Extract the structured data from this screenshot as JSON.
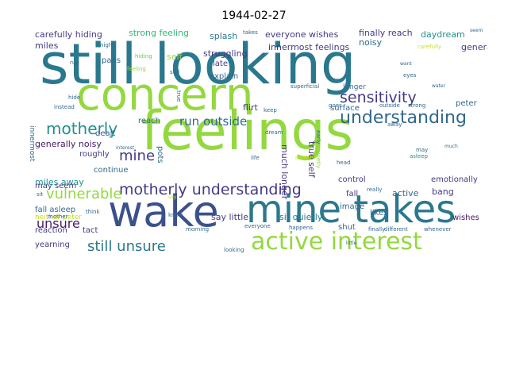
{
  "title": "1944-02-27",
  "colors": {
    "green": "#94d840",
    "teal": "#2a788e",
    "navy": "#3b518b",
    "indigo": "#443a83",
    "blue": "#31688e",
    "sea": "#21918c",
    "mint": "#35b779",
    "lime": "#5ec962",
    "yellow": "#c7e020",
    "purple": "#48186a"
  },
  "words": [
    {
      "text": "still looking",
      "color": "teal"
    },
    {
      "text": "concern",
      "color": "green"
    },
    {
      "text": "feelings",
      "color": "green"
    },
    {
      "text": "wake",
      "color": "navy"
    },
    {
      "text": "mine takes",
      "color": "teal"
    },
    {
      "text": "active interest",
      "color": "green"
    },
    {
      "text": "sensitivity",
      "color": "indigo"
    },
    {
      "text": "understanding",
      "color": "blue"
    },
    {
      "text": "motherly understanding",
      "color": "indigo"
    },
    {
      "text": "motherly",
      "color": "sea"
    },
    {
      "text": "mine",
      "color": "indigo"
    },
    {
      "text": "vulnerable",
      "color": "green"
    },
    {
      "text": "unsure",
      "color": "purple"
    },
    {
      "text": "still unsure",
      "color": "teal"
    },
    {
      "text": "run outside",
      "color": "blue"
    },
    {
      "text": "carefully hiding",
      "color": "indigo"
    },
    {
      "text": "strong feeling",
      "color": "mint"
    },
    {
      "text": "splash",
      "color": "teal"
    },
    {
      "text": "everyone wishes",
      "color": "indigo"
    },
    {
      "text": "finally reach",
      "color": "indigo"
    },
    {
      "text": "daydream",
      "color": "sea"
    },
    {
      "text": "miles",
      "color": "indigo"
    },
    {
      "text": "night",
      "color": "blue"
    },
    {
      "text": "takes",
      "color": "blue"
    },
    {
      "text": "seem",
      "color": "blue"
    },
    {
      "text": "innermost feelings",
      "color": "indigo"
    },
    {
      "text": "struggling",
      "color": "indigo"
    },
    {
      "text": "noisy",
      "color": "blue"
    },
    {
      "text": "generally",
      "color": "indigo"
    },
    {
      "text": "self",
      "color": "green"
    },
    {
      "text": "pans",
      "color": "blue"
    },
    {
      "text": "late",
      "color": "indigo"
    },
    {
      "text": "explain",
      "color": "blue"
    },
    {
      "text": "flirt",
      "color": "indigo"
    },
    {
      "text": "surface",
      "color": "blue"
    },
    {
      "text": "peter",
      "color": "blue"
    },
    {
      "text": "dealt",
      "color": "blue"
    },
    {
      "text": "reach",
      "color": "blue"
    },
    {
      "text": "generally noisy",
      "color": "purple"
    },
    {
      "text": "roughly",
      "color": "indigo"
    },
    {
      "text": "miles away",
      "color": "sea"
    },
    {
      "text": "may seem",
      "color": "indigo"
    },
    {
      "text": "say little",
      "color": "indigo"
    },
    {
      "text": "sit quietly",
      "color": "teal"
    },
    {
      "text": "fall",
      "color": "indigo"
    },
    {
      "text": "active",
      "color": "blue"
    },
    {
      "text": "bang",
      "color": "indigo"
    },
    {
      "text": "wishes",
      "color": "purple"
    },
    {
      "text": "fall asleep",
      "color": "blue"
    },
    {
      "text": "control",
      "color": "indigo"
    },
    {
      "text": "likes",
      "color": "blue"
    },
    {
      "text": "emotionally",
      "color": "indigo"
    },
    {
      "text": "reaction",
      "color": "indigo"
    },
    {
      "text": "tact",
      "color": "indigo"
    },
    {
      "text": "yearning",
      "color": "indigo"
    },
    {
      "text": "shut",
      "color": "blue"
    },
    {
      "text": "image",
      "color": "blue"
    },
    {
      "text": "continue",
      "color": "blue"
    },
    {
      "text": "pots",
      "color": "blue"
    },
    {
      "text": "much longer",
      "color": "indigo"
    },
    {
      "text": "true self",
      "color": "indigo"
    },
    {
      "text": "innermost",
      "color": "blue"
    },
    {
      "text": "neither peter",
      "color": "yellow"
    },
    {
      "text": "happens",
      "color": "blue"
    },
    {
      "text": "finally",
      "color": "blue"
    },
    {
      "text": "different",
      "color": "blue"
    },
    {
      "text": "whenever",
      "color": "blue"
    },
    {
      "text": "superficial",
      "color": "blue"
    },
    {
      "text": "longer",
      "color": "blue"
    },
    {
      "text": "water",
      "color": "blue"
    },
    {
      "text": "goes",
      "color": "blue"
    },
    {
      "text": "strong",
      "color": "blue"
    },
    {
      "text": "outside",
      "color": "blue"
    },
    {
      "text": "hide",
      "color": "blue"
    },
    {
      "text": "instead",
      "color": "blue"
    },
    {
      "text": "feeling",
      "color": "green"
    },
    {
      "text": "hiding",
      "color": "lime"
    },
    {
      "text": "still",
      "color": "blue"
    },
    {
      "text": "run",
      "color": "blue"
    },
    {
      "text": "want",
      "color": "blue"
    },
    {
      "text": "eyes",
      "color": "blue"
    },
    {
      "text": "away",
      "color": "blue"
    },
    {
      "text": "interest",
      "color": "blue"
    },
    {
      "text": "life",
      "color": "blue"
    },
    {
      "text": "neither",
      "color": "yellow"
    },
    {
      "text": "head",
      "color": "blue"
    },
    {
      "text": "asleep",
      "color": "sea"
    },
    {
      "text": "think",
      "color": "blue"
    },
    {
      "text": "sit",
      "color": "blue"
    },
    {
      "text": "morning",
      "color": "blue"
    },
    {
      "text": "know",
      "color": "blue"
    },
    {
      "text": "everyone",
      "color": "blue"
    },
    {
      "text": "mother",
      "color": "blue"
    },
    {
      "text": "looking",
      "color": "blue"
    },
    {
      "text": "keep",
      "color": "blue"
    },
    {
      "text": "dream",
      "color": "blue"
    },
    {
      "text": "early",
      "color": "blue"
    },
    {
      "text": "quietly",
      "color": "green"
    },
    {
      "text": "really",
      "color": "blue"
    },
    {
      "text": "may",
      "color": "blue"
    },
    {
      "text": "much",
      "color": "blue"
    },
    {
      "text": "little",
      "color": "blue"
    },
    {
      "text": "carefully",
      "color": "yellow"
    },
    {
      "text": "true",
      "color": "blue"
    },
    {
      "text": "say",
      "color": "yellow"
    }
  ]
}
